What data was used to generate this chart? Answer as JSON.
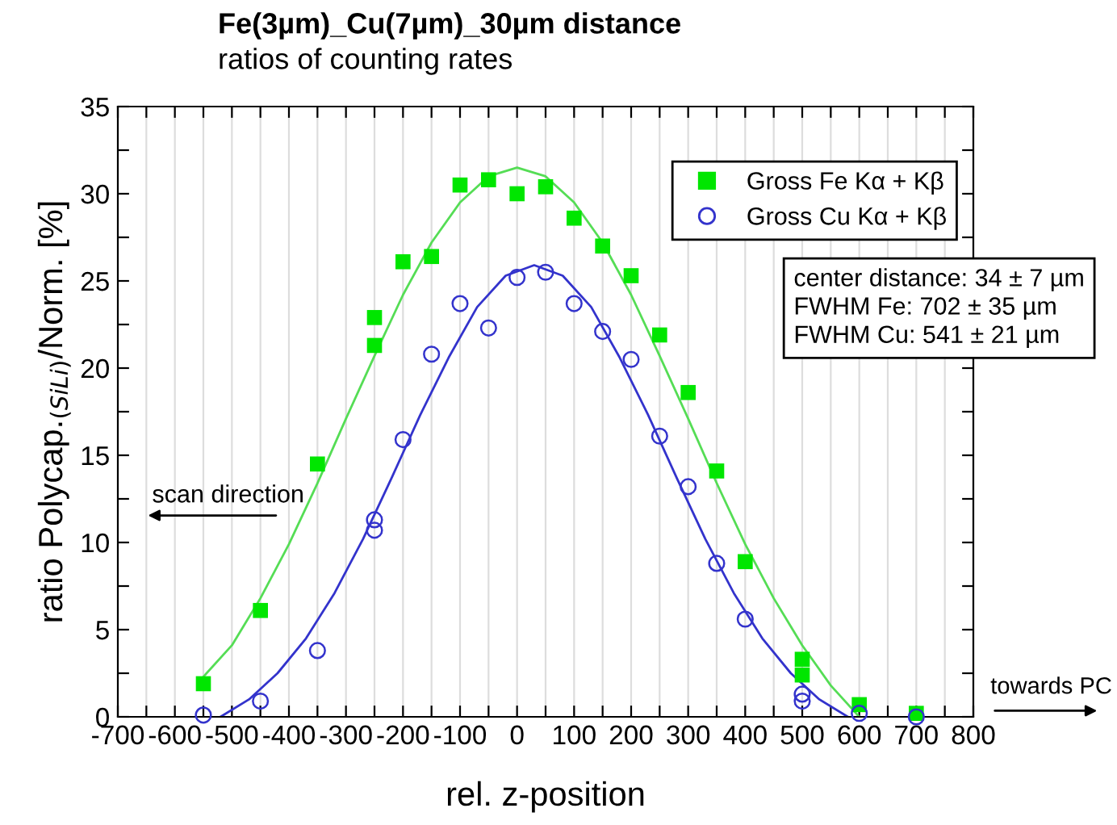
{
  "chart_data": {
    "type": "scatter",
    "title": "Fe(3µm)_Cu(7µm)_30µm distance",
    "subtitle": "ratios of counting rates",
    "xlabel": "rel. z-position",
    "ylabel": "ratio Polycap.$_{(SiLi)}$/Norm. [%]",
    "series": [
      {
        "name": "Gross Fe Kα + Kβ",
        "color": "#00e600",
        "marker": "square",
        "x": [
          -550,
          -450,
          -350,
          -250,
          -250,
          -200,
          -150,
          -100,
          -50,
          0,
          50,
          100,
          150,
          200,
          250,
          300,
          350,
          400,
          500,
          500,
          600,
          700
        ],
        "values": [
          1.9,
          6.1,
          14.5,
          22.9,
          21.3,
          26.1,
          26.4,
          30.5,
          30.8,
          30.0,
          30.4,
          28.6,
          27.0,
          25.3,
          21.9,
          18.6,
          14.1,
          8.9,
          3.3,
          2.4,
          0.7,
          0.2
        ]
      },
      {
        "name": "Gross Cu Kα + Kβ",
        "color": "#3333cc",
        "marker": "circle",
        "x": [
          -550,
          -450,
          -350,
          -250,
          -250,
          -200,
          -150,
          -100,
          -50,
          0,
          50,
          100,
          150,
          200,
          250,
          300,
          350,
          400,
          500,
          500,
          600,
          700
        ],
        "values": [
          0.1,
          0.9,
          3.8,
          11.3,
          10.7,
          15.9,
          20.8,
          23.7,
          22.3,
          25.2,
          25.5,
          23.7,
          22.1,
          20.5,
          16.1,
          13.2,
          8.8,
          5.6,
          1.3,
          0.9,
          0.2,
          0.0
        ]
      },
      {
        "type": "line",
        "color": "#55dd55",
        "x": [
          -550,
          -500,
          -450,
          -400,
          -350,
          -300,
          -250,
          -200,
          -150,
          -100,
          -50,
          0,
          50,
          100,
          150,
          200,
          250,
          300,
          350,
          400,
          450,
          500,
          550,
          600
        ],
        "values": [
          2.3,
          4.1,
          6.8,
          9.9,
          13.4,
          17.1,
          20.7,
          24.2,
          27.2,
          29.5,
          31.0,
          31.5,
          31.0,
          29.5,
          27.2,
          24.2,
          20.7,
          17.1,
          13.4,
          9.9,
          6.8,
          4.1,
          1.8,
          0.0
        ]
      },
      {
        "type": "line",
        "color": "#3333cc",
        "x": [
          -520,
          -470,
          -420,
          -370,
          -320,
          -270,
          -220,
          -170,
          -120,
          -70,
          -20,
          30,
          80,
          130,
          180,
          230,
          280,
          330,
          380,
          430,
          480,
          530,
          580
        ],
        "values": [
          0.0,
          1.0,
          2.5,
          4.5,
          7.1,
          10.2,
          13.7,
          17.3,
          20.6,
          23.5,
          25.3,
          25.9,
          25.3,
          23.5,
          20.6,
          17.3,
          13.7,
          10.2,
          7.1,
          4.5,
          2.5,
          1.0,
          0.0
        ]
      }
    ],
    "xlim": [
      -700,
      800
    ],
    "xticks": [
      -700,
      {
        "value": -650,
        "label": null
      },
      -600,
      {
        "value": -550,
        "label": null
      },
      -500,
      {
        "value": -450,
        "label": null
      },
      -400,
      {
        "value": -350,
        "label": null
      },
      -300,
      {
        "value": -250,
        "label": null
      },
      -200,
      {
        "value": -150,
        "label": null
      },
      -100,
      {
        "value": -50,
        "label": null
      },
      0,
      {
        "value": 50,
        "label": null
      },
      100,
      {
        "value": 150,
        "label": null
      },
      200,
      {
        "value": 250,
        "label": null
      },
      300,
      {
        "value": 350,
        "label": null
      },
      400,
      {
        "value": 450,
        "label": null
      },
      500,
      {
        "value": 550,
        "label": null
      },
      600,
      {
        "value": 650,
        "label": null
      },
      700,
      {
        "value": 750,
        "label": null
      },
      800
    ],
    "ylim": [
      0,
      35
    ],
    "yticks": [
      0,
      {
        "value": 2.5,
        "label": null
      },
      5,
      {
        "value": 7.5,
        "label": null
      },
      10,
      {
        "value": 12.5,
        "label": null
      },
      15,
      {
        "value": 17.5,
        "label": null
      },
      20,
      {
        "value": 22.5,
        "label": null
      },
      25,
      {
        "value": 27.5,
        "label": null
      },
      30,
      {
        "value": 32.5,
        "label": null
      },
      35
    ],
    "grid": "x",
    "legend": "top right",
    "annotations": [
      "center distance: 34 ± 7 µm\nFWHM Fe: 702 ± 35 µm\nFWHM Cu: 541 ± 21 µm",
      "scan direction",
      "towards PC"
    ]
  }
}
